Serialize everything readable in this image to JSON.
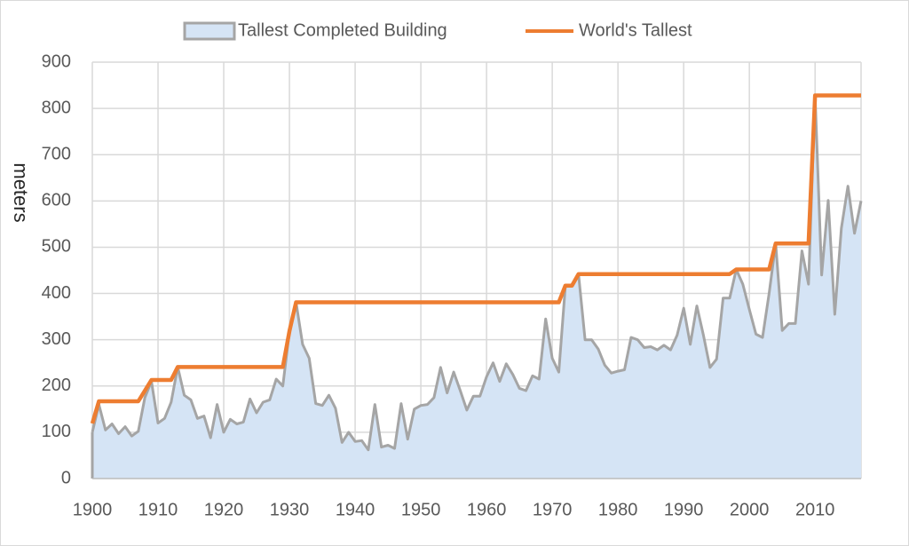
{
  "chart_data": {
    "type": "line",
    "ylabel": "meters",
    "x": [
      1900,
      1901,
      1902,
      1903,
      1904,
      1905,
      1906,
      1907,
      1908,
      1909,
      1910,
      1911,
      1912,
      1913,
      1914,
      1915,
      1916,
      1917,
      1918,
      1919,
      1920,
      1921,
      1922,
      1923,
      1924,
      1925,
      1926,
      1927,
      1928,
      1929,
      1930,
      1931,
      1932,
      1933,
      1934,
      1935,
      1936,
      1937,
      1938,
      1939,
      1940,
      1941,
      1942,
      1943,
      1944,
      1945,
      1946,
      1947,
      1948,
      1949,
      1950,
      1951,
      1952,
      1953,
      1954,
      1955,
      1956,
      1957,
      1958,
      1959,
      1960,
      1961,
      1962,
      1963,
      1964,
      1965,
      1966,
      1967,
      1968,
      1969,
      1970,
      1971,
      1972,
      1973,
      1974,
      1975,
      1976,
      1977,
      1978,
      1979,
      1980,
      1981,
      1982,
      1983,
      1984,
      1985,
      1986,
      1987,
      1988,
      1989,
      1990,
      1991,
      1992,
      1993,
      1994,
      1995,
      1996,
      1997,
      1998,
      1999,
      2000,
      2001,
      2002,
      2003,
      2004,
      2005,
      2006,
      2007,
      2008,
      2009,
      2010,
      2011,
      2012,
      2013,
      2014,
      2015,
      2016,
      2017
    ],
    "series": [
      {
        "name": "Tallest Completed Building",
        "color": "#a5a5a5",
        "fill": "#d5e4f5",
        "area": true,
        "values": [
          100,
          160,
          105,
          118,
          97,
          112,
          92,
          102,
          175,
          210,
          120,
          130,
          165,
          241,
          180,
          170,
          130,
          135,
          88,
          160,
          100,
          128,
          118,
          122,
          172,
          142,
          165,
          170,
          215,
          200,
          319,
          381,
          290,
          260,
          162,
          158,
          180,
          152,
          78,
          100,
          80,
          82,
          62,
          160,
          68,
          72,
          65,
          162,
          85,
          150,
          158,
          160,
          175,
          240,
          185,
          230,
          190,
          148,
          178,
          178,
          220,
          250,
          210,
          248,
          225,
          195,
          190,
          222,
          215,
          345,
          260,
          230,
          417,
          417,
          442,
          300,
          300,
          280,
          245,
          228,
          232,
          235,
          305,
          300,
          283,
          285,
          278,
          288,
          278,
          310,
          368,
          290,
          373,
          310,
          240,
          258,
          390,
          390,
          452,
          420,
          365,
          312,
          305,
          400,
          508,
          320,
          335,
          335,
          492,
          420,
          828,
          440,
          601,
          355,
          541,
          632,
          530,
          600
        ]
      },
      {
        "name": "World's Tallest",
        "color": "#ed7d31",
        "area": false,
        "values": [
          119,
          167,
          167,
          167,
          167,
          167,
          167,
          167,
          190,
          213,
          213,
          213,
          213,
          241,
          241,
          241,
          241,
          241,
          241,
          241,
          241,
          241,
          241,
          241,
          241,
          241,
          241,
          241,
          241,
          241,
          319,
          381,
          381,
          381,
          381,
          381,
          381,
          381,
          381,
          381,
          381,
          381,
          381,
          381,
          381,
          381,
          381,
          381,
          381,
          381,
          381,
          381,
          381,
          381,
          381,
          381,
          381,
          381,
          381,
          381,
          381,
          381,
          381,
          381,
          381,
          381,
          381,
          381,
          381,
          381,
          381,
          381,
          417,
          417,
          442,
          442,
          442,
          442,
          442,
          442,
          442,
          442,
          442,
          442,
          442,
          442,
          442,
          442,
          442,
          442,
          442,
          442,
          442,
          442,
          442,
          442,
          442,
          442,
          452,
          452,
          452,
          452,
          452,
          452,
          508,
          508,
          508,
          508,
          508,
          508,
          828,
          828,
          828,
          828,
          828,
          828,
          828,
          828
        ]
      }
    ],
    "xlim": [
      1900,
      2017
    ],
    "xticks": [
      1900,
      1910,
      1920,
      1930,
      1940,
      1950,
      1960,
      1970,
      1980,
      1990,
      2000,
      2010
    ],
    "ylim": [
      0,
      900
    ],
    "yticks": [
      0,
      100,
      200,
      300,
      400,
      500,
      600,
      700,
      800,
      900
    ],
    "grid": true,
    "legend": "top"
  }
}
